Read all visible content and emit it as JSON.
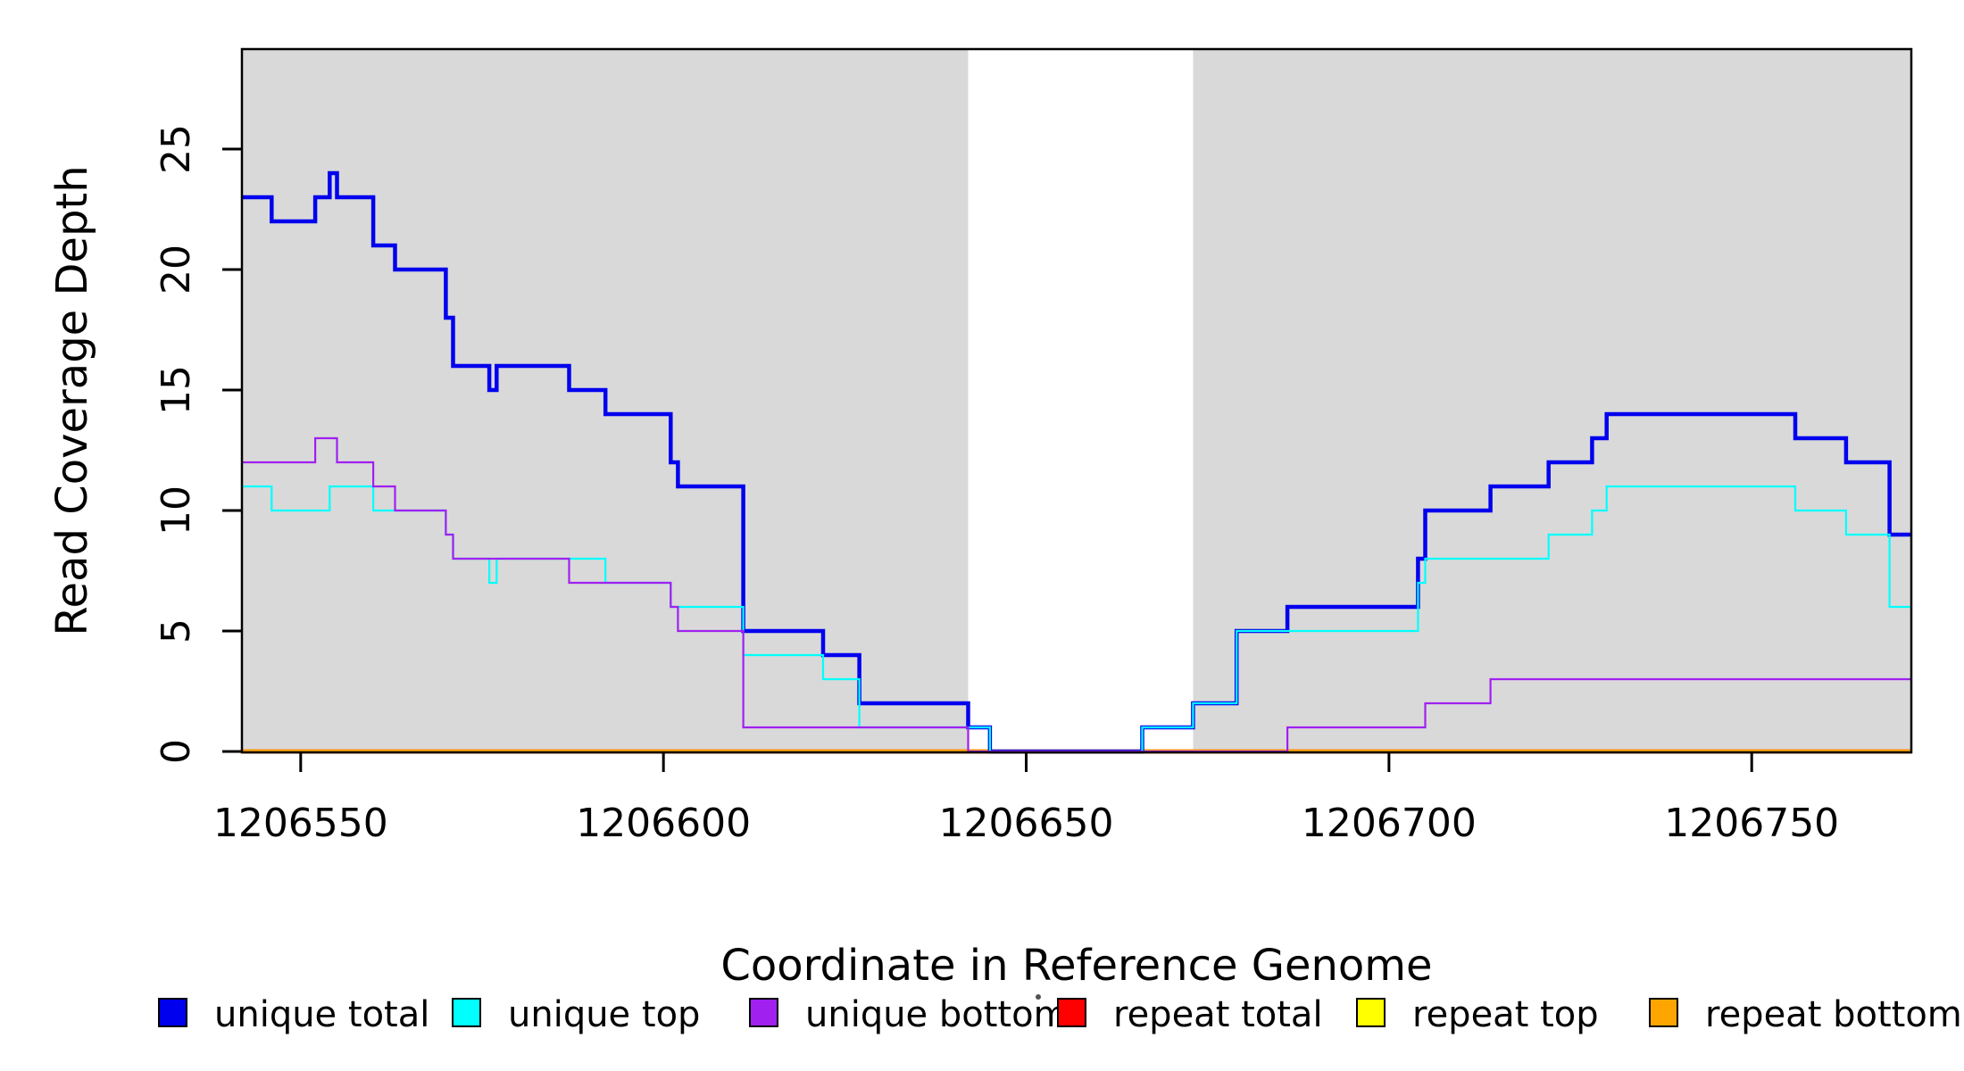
{
  "chart_data": {
    "type": "line",
    "subtype": "step",
    "title": "",
    "xlabel": "Coordinate in Reference Genome",
    "ylabel": "Read Coverage Depth",
    "x_ticks": [
      "1206550",
      "1206600",
      "1206650",
      "1206700",
      "1206750"
    ],
    "x_tick_values": [
      1206550,
      1206600,
      1206650,
      1206700,
      1206750
    ],
    "y_ticks": [
      "0",
      "5",
      "10",
      "15",
      "20",
      "25"
    ],
    "y_tick_values": [
      0,
      5,
      10,
      15,
      20,
      25
    ],
    "xlim": [
      1206541.9,
      1206772
    ],
    "ylim": [
      0,
      29.15
    ],
    "grid": "off",
    "background": {
      "panel_shading_color": "#D9D9D9",
      "shaded_regions": [
        [
          1206541.9,
          1206642
        ],
        [
          1206673,
          1206772
        ]
      ],
      "unshaded_gap": [
        1206642,
        1206673
      ]
    },
    "series": [
      {
        "name": "unique total",
        "color": "#0000EE",
        "width": 4.5,
        "steps": [
          [
            1206541.9,
            23
          ],
          [
            1206546,
            22
          ],
          [
            1206552,
            23
          ],
          [
            1206554,
            24
          ],
          [
            1206555,
            23
          ],
          [
            1206560,
            21
          ],
          [
            1206563,
            20
          ],
          [
            1206570,
            18
          ],
          [
            1206571,
            16
          ],
          [
            1206576,
            15
          ],
          [
            1206577,
            16
          ],
          [
            1206587,
            15
          ],
          [
            1206592,
            14
          ],
          [
            1206601,
            12
          ],
          [
            1206602,
            11
          ],
          [
            1206611,
            5
          ],
          [
            1206622,
            4
          ],
          [
            1206627,
            2
          ],
          [
            1206642,
            1
          ],
          [
            1206645,
            0
          ],
          [
            1206666,
            1
          ],
          [
            1206673,
            2
          ],
          [
            1206679,
            5
          ],
          [
            1206686,
            6
          ],
          [
            1206704,
            8
          ],
          [
            1206705,
            10
          ],
          [
            1206714,
            11
          ],
          [
            1206722,
            12
          ],
          [
            1206728,
            13
          ],
          [
            1206730,
            14
          ],
          [
            1206756,
            13
          ],
          [
            1206763,
            12
          ],
          [
            1206769,
            9
          ]
        ]
      },
      {
        "name": "unique top",
        "color": "#00FFFF",
        "width": 2.2,
        "steps": [
          [
            1206541.9,
            11
          ],
          [
            1206546,
            10
          ],
          [
            1206554,
            11
          ],
          [
            1206560,
            10
          ],
          [
            1206570,
            9
          ],
          [
            1206571,
            8
          ],
          [
            1206576,
            7
          ],
          [
            1206577,
            8
          ],
          [
            1206592,
            7
          ],
          [
            1206601,
            6
          ],
          [
            1206611,
            4
          ],
          [
            1206622,
            3
          ],
          [
            1206627,
            1
          ],
          [
            1206645,
            0
          ],
          [
            1206666,
            1
          ],
          [
            1206673,
            2
          ],
          [
            1206679,
            5
          ],
          [
            1206704,
            7
          ],
          [
            1206705,
            8
          ],
          [
            1206722,
            9
          ],
          [
            1206728,
            10
          ],
          [
            1206730,
            11
          ],
          [
            1206756,
            10
          ],
          [
            1206763,
            9
          ],
          [
            1206769,
            6
          ]
        ]
      },
      {
        "name": "unique bottom",
        "color": "#A020F0",
        "width": 2.2,
        "steps": [
          [
            1206541.9,
            12
          ],
          [
            1206552,
            13
          ],
          [
            1206555,
            12
          ],
          [
            1206560,
            11
          ],
          [
            1206563,
            10
          ],
          [
            1206570,
            9
          ],
          [
            1206571,
            8
          ],
          [
            1206587,
            7
          ],
          [
            1206601,
            6
          ],
          [
            1206602,
            5
          ],
          [
            1206611,
            1
          ],
          [
            1206642,
            0
          ],
          [
            1206686,
            1
          ],
          [
            1206705,
            2
          ],
          [
            1206714,
            3
          ]
        ]
      },
      {
        "name": "repeat total",
        "color": "#FF0000",
        "width": 5,
        "steps": [
          [
            1206541.9,
            0
          ]
        ]
      },
      {
        "name": "repeat top",
        "color": "#FFFF00",
        "width": 4.5,
        "steps": [
          [
            1206541.9,
            0
          ]
        ]
      },
      {
        "name": "repeat bottom",
        "color": "#FFA500",
        "width": 4,
        "steps": [
          [
            1206541.9,
            0
          ]
        ]
      }
    ],
    "legend": {
      "position": "bottom",
      "labels": [
        "unique total",
        "unique top",
        "unique bottom",
        "repeat total",
        "repeat top",
        "repeat bottom"
      ]
    }
  }
}
